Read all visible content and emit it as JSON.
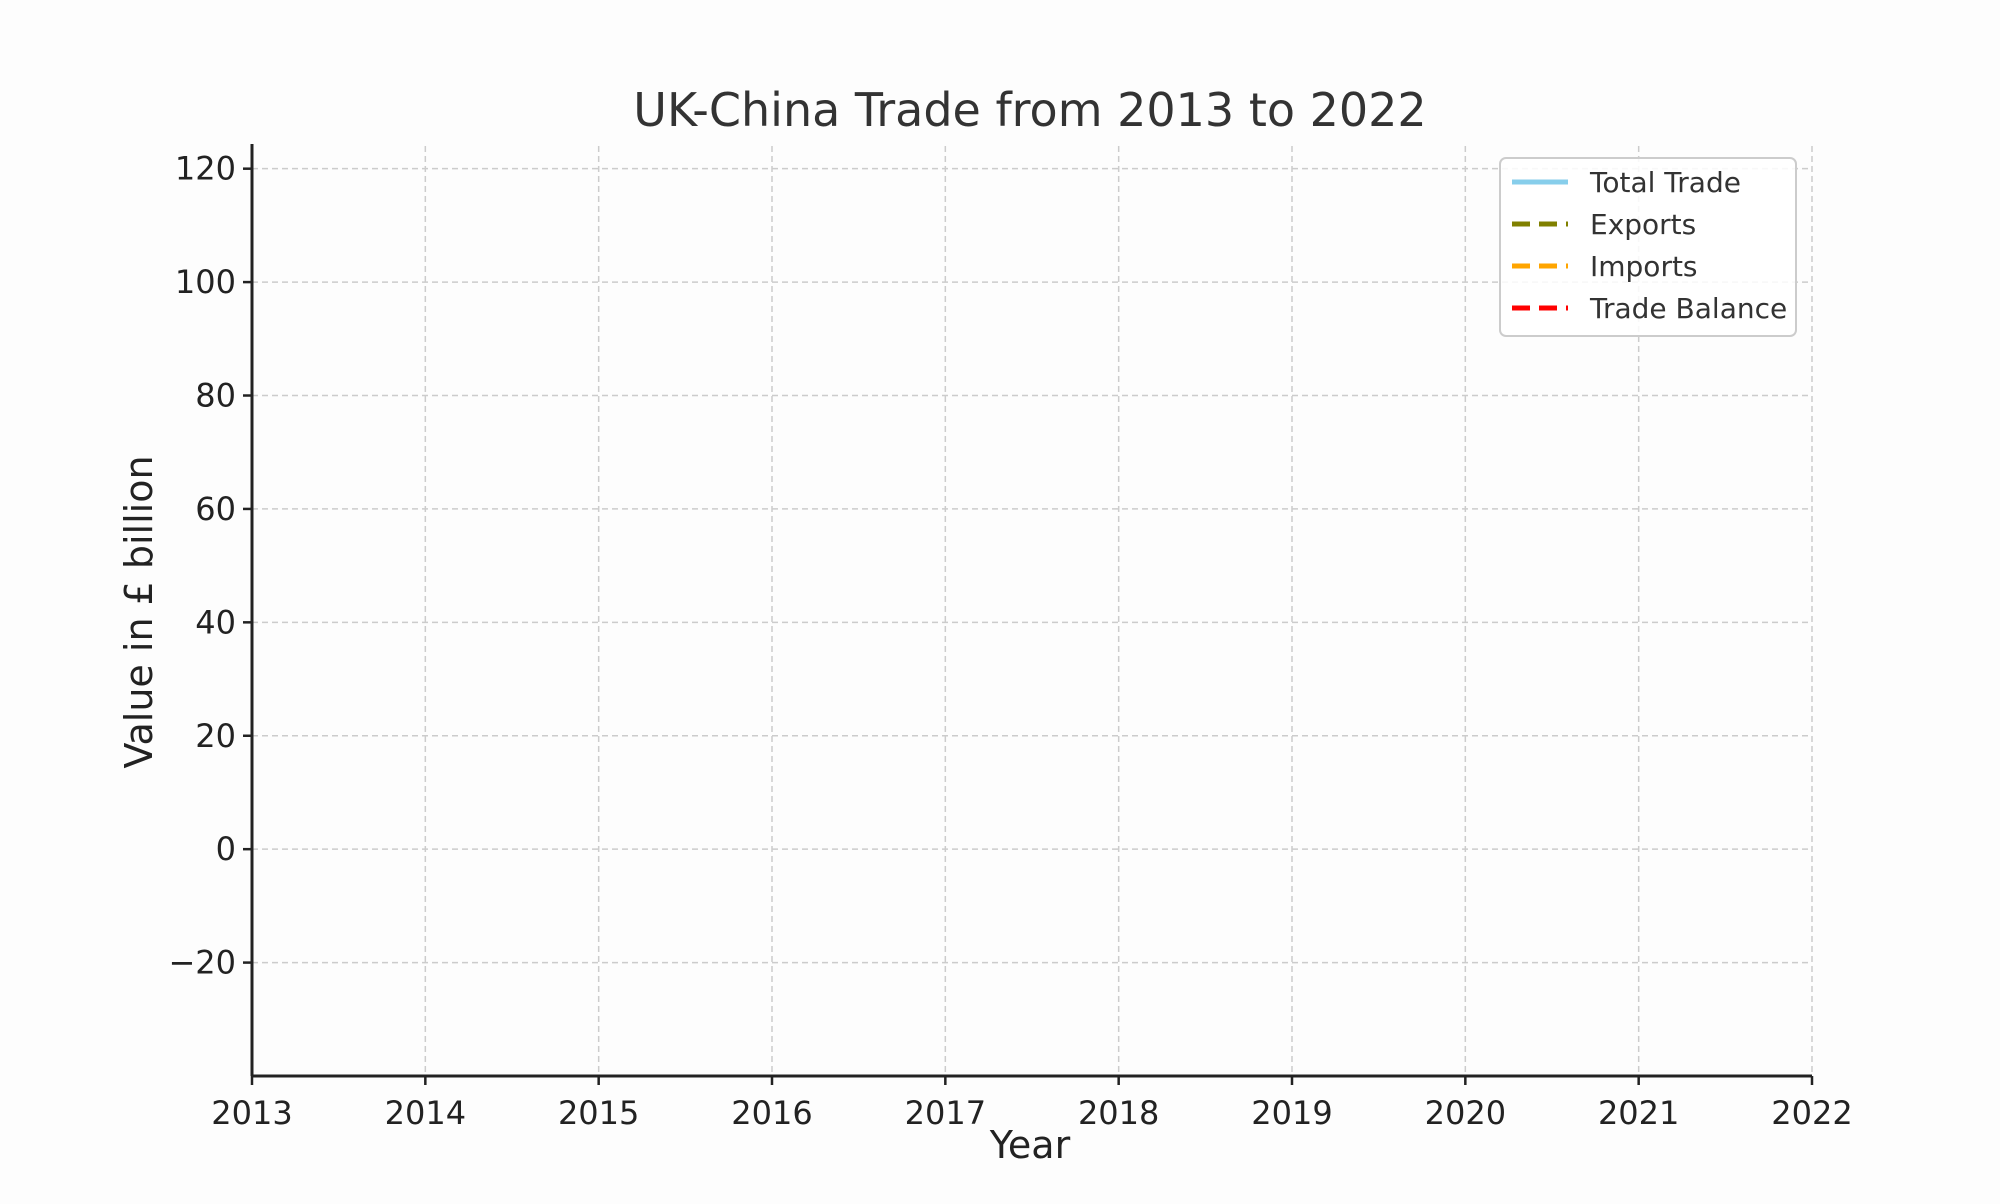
{
  "chart_data": {
    "type": "line",
    "title": "UK-China Trade from 2013 to 2022",
    "xlabel": "Year",
    "ylabel": "Value in £ billion",
    "x_ticks": [
      "2013",
      "2014",
      "2015",
      "2016",
      "2017",
      "2018",
      "2019",
      "2020",
      "2021",
      "2022"
    ],
    "y_ticks": [
      "120",
      "100",
      "80",
      "60",
      "40",
      "20",
      "0",
      "−20"
    ],
    "xlim": [
      2013,
      2022
    ],
    "ylim": [
      -40,
      124
    ],
    "y_tick_values": [
      120,
      100,
      80,
      60,
      40,
      20,
      0,
      -20
    ],
    "grid": true,
    "legend_position": "top-right",
    "x": [],
    "series": [
      {
        "name": "Total Trade",
        "color": "#87ceeb",
        "style": "solid",
        "values": []
      },
      {
        "name": "Exports",
        "color": "#808000",
        "style": "dashed",
        "values": []
      },
      {
        "name": "Imports",
        "color": "#ffa500",
        "style": "dashed",
        "values": []
      },
      {
        "name": "Trade Balance",
        "color": "#ff0000",
        "style": "dashed",
        "values": []
      }
    ]
  }
}
